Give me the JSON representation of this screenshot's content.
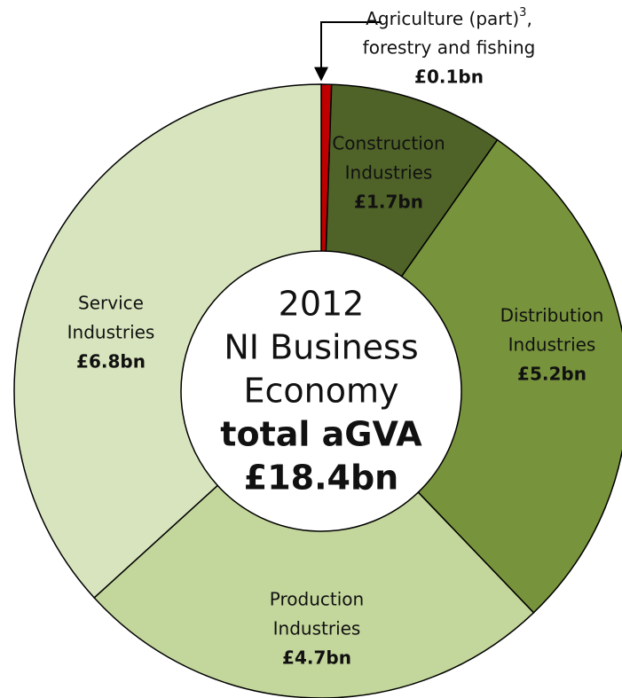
{
  "chart_data": {
    "type": "donut",
    "categories": [
      [
        [
          "Agriculture (part)",
          "3",
          ","
        ],
        "forestry and fishing"
      ],
      [
        "Construction",
        "Industries"
      ],
      [
        "Distribution",
        "Industries"
      ],
      [
        "Production",
        "Industries"
      ],
      [
        "Service",
        "Industries"
      ]
    ],
    "values": [
      0.1,
      1.7,
      5.2,
      4.7,
      6.8
    ],
    "value_labels": [
      "£0.1bn",
      "£1.7bn",
      "£5.2bn",
      "£4.7bn",
      "£6.8bn"
    ],
    "colors": [
      "#c00000",
      "#4f6228",
      "#77933c",
      "#c3d69b",
      "#d7e4bd"
    ],
    "center_text": [
      "2012",
      "NI Business",
      "Economy",
      "total aGVA",
      "£18.4bn"
    ]
  }
}
